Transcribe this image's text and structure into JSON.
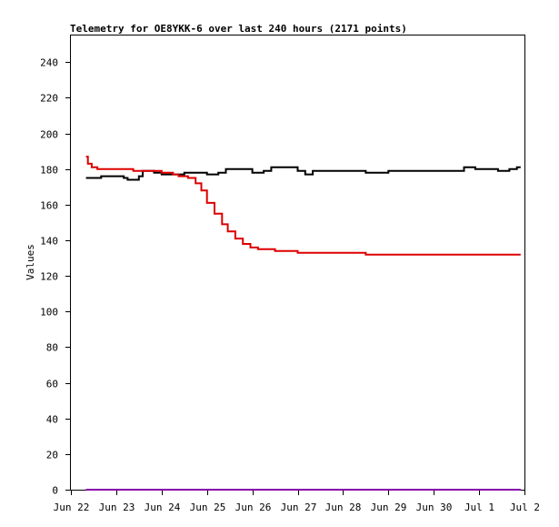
{
  "chart_data": {
    "type": "line",
    "title": "Telemetry for OE8YKK-6 over last 240 hours (2171 points)",
    "xlabel": "",
    "ylabel": "Values",
    "ylim": [
      0,
      255
    ],
    "xlim": [
      "2023-06-22 00:00",
      "2023-07-02 00:00"
    ],
    "x_ticks": [
      "Jun 22",
      "Jun 23",
      "Jun 24",
      "Jun 25",
      "Jun 26",
      "Jun 27",
      "Jun 28",
      "Jun 29",
      "Jun 30",
      "Jul 1",
      "Jul 2"
    ],
    "y_ticks": [
      0,
      20,
      40,
      60,
      80,
      100,
      120,
      140,
      160,
      180,
      200,
      220,
      240
    ],
    "grid": false,
    "legend": "none",
    "series": [
      {
        "color": "#000000",
        "points": [
          [
            "2023-06-22 08:00",
            175
          ],
          [
            "2023-06-22 12:00",
            175
          ],
          [
            "2023-06-22 16:00",
            176
          ],
          [
            "2023-06-23 00:00",
            176
          ],
          [
            "2023-06-23 04:00",
            175
          ],
          [
            "2023-06-23 06:00",
            174
          ],
          [
            "2023-06-23 12:00",
            176
          ],
          [
            "2023-06-23 14:00",
            179
          ],
          [
            "2023-06-23 20:00",
            178
          ],
          [
            "2023-06-24 00:00",
            177
          ],
          [
            "2023-06-24 12:00",
            178
          ],
          [
            "2023-06-24 20:00",
            178
          ],
          [
            "2023-06-25 00:00",
            177
          ],
          [
            "2023-06-25 06:00",
            178
          ],
          [
            "2023-06-25 10:00",
            180
          ],
          [
            "2023-06-25 18:00",
            180
          ],
          [
            "2023-06-26 00:00",
            178
          ],
          [
            "2023-06-26 06:00",
            179
          ],
          [
            "2023-06-26 10:00",
            181
          ],
          [
            "2023-06-26 18:00",
            181
          ],
          [
            "2023-06-27 00:00",
            179
          ],
          [
            "2023-06-27 04:00",
            177
          ],
          [
            "2023-06-27 08:00",
            179
          ],
          [
            "2023-06-27 16:00",
            179
          ],
          [
            "2023-06-28 00:00",
            179
          ],
          [
            "2023-06-28 12:00",
            178
          ],
          [
            "2023-06-29 00:00",
            179
          ],
          [
            "2023-06-29 12:00",
            179
          ],
          [
            "2023-06-30 00:00",
            179
          ],
          [
            "2023-06-30 12:00",
            179
          ],
          [
            "2023-06-30 16:00",
            181
          ],
          [
            "2023-06-30 22:00",
            180
          ],
          [
            "2023-07-01 06:00",
            180
          ],
          [
            "2023-07-01 10:00",
            179
          ],
          [
            "2023-07-01 16:00",
            180
          ],
          [
            "2023-07-01 20:00",
            181
          ],
          [
            "2023-07-01 22:00",
            181
          ]
        ]
      },
      {
        "color": "#dd0000",
        "points": [
          [
            "2023-06-22 08:00",
            187
          ],
          [
            "2023-06-22 09:00",
            183
          ],
          [
            "2023-06-22 11:00",
            181
          ],
          [
            "2023-06-22 14:00",
            180
          ],
          [
            "2023-06-23 06:00",
            180
          ],
          [
            "2023-06-23 09:00",
            179
          ],
          [
            "2023-06-24 00:00",
            178
          ],
          [
            "2023-06-24 06:00",
            177
          ],
          [
            "2023-06-24 09:00",
            176
          ],
          [
            "2023-06-24 14:00",
            175
          ],
          [
            "2023-06-24 18:00",
            172
          ],
          [
            "2023-06-24 21:00",
            168
          ],
          [
            "2023-06-25 00:00",
            161
          ],
          [
            "2023-06-25 04:00",
            155
          ],
          [
            "2023-06-25 08:00",
            149
          ],
          [
            "2023-06-25 11:00",
            145
          ],
          [
            "2023-06-25 15:00",
            141
          ],
          [
            "2023-06-25 19:00",
            138
          ],
          [
            "2023-06-25 23:00",
            136
          ],
          [
            "2023-06-26 03:00",
            135
          ],
          [
            "2023-06-26 08:00",
            135
          ],
          [
            "2023-06-26 12:00",
            134
          ],
          [
            "2023-06-26 18:00",
            134
          ],
          [
            "2023-06-27 00:00",
            133
          ],
          [
            "2023-06-28 00:00",
            133
          ],
          [
            "2023-06-28 12:00",
            132
          ],
          [
            "2023-07-01 22:00",
            132
          ]
        ]
      },
      {
        "color": "#8800aa",
        "points": [
          [
            "2023-06-22 08:00",
            0
          ],
          [
            "2023-07-01 22:00",
            0
          ]
        ]
      }
    ]
  }
}
